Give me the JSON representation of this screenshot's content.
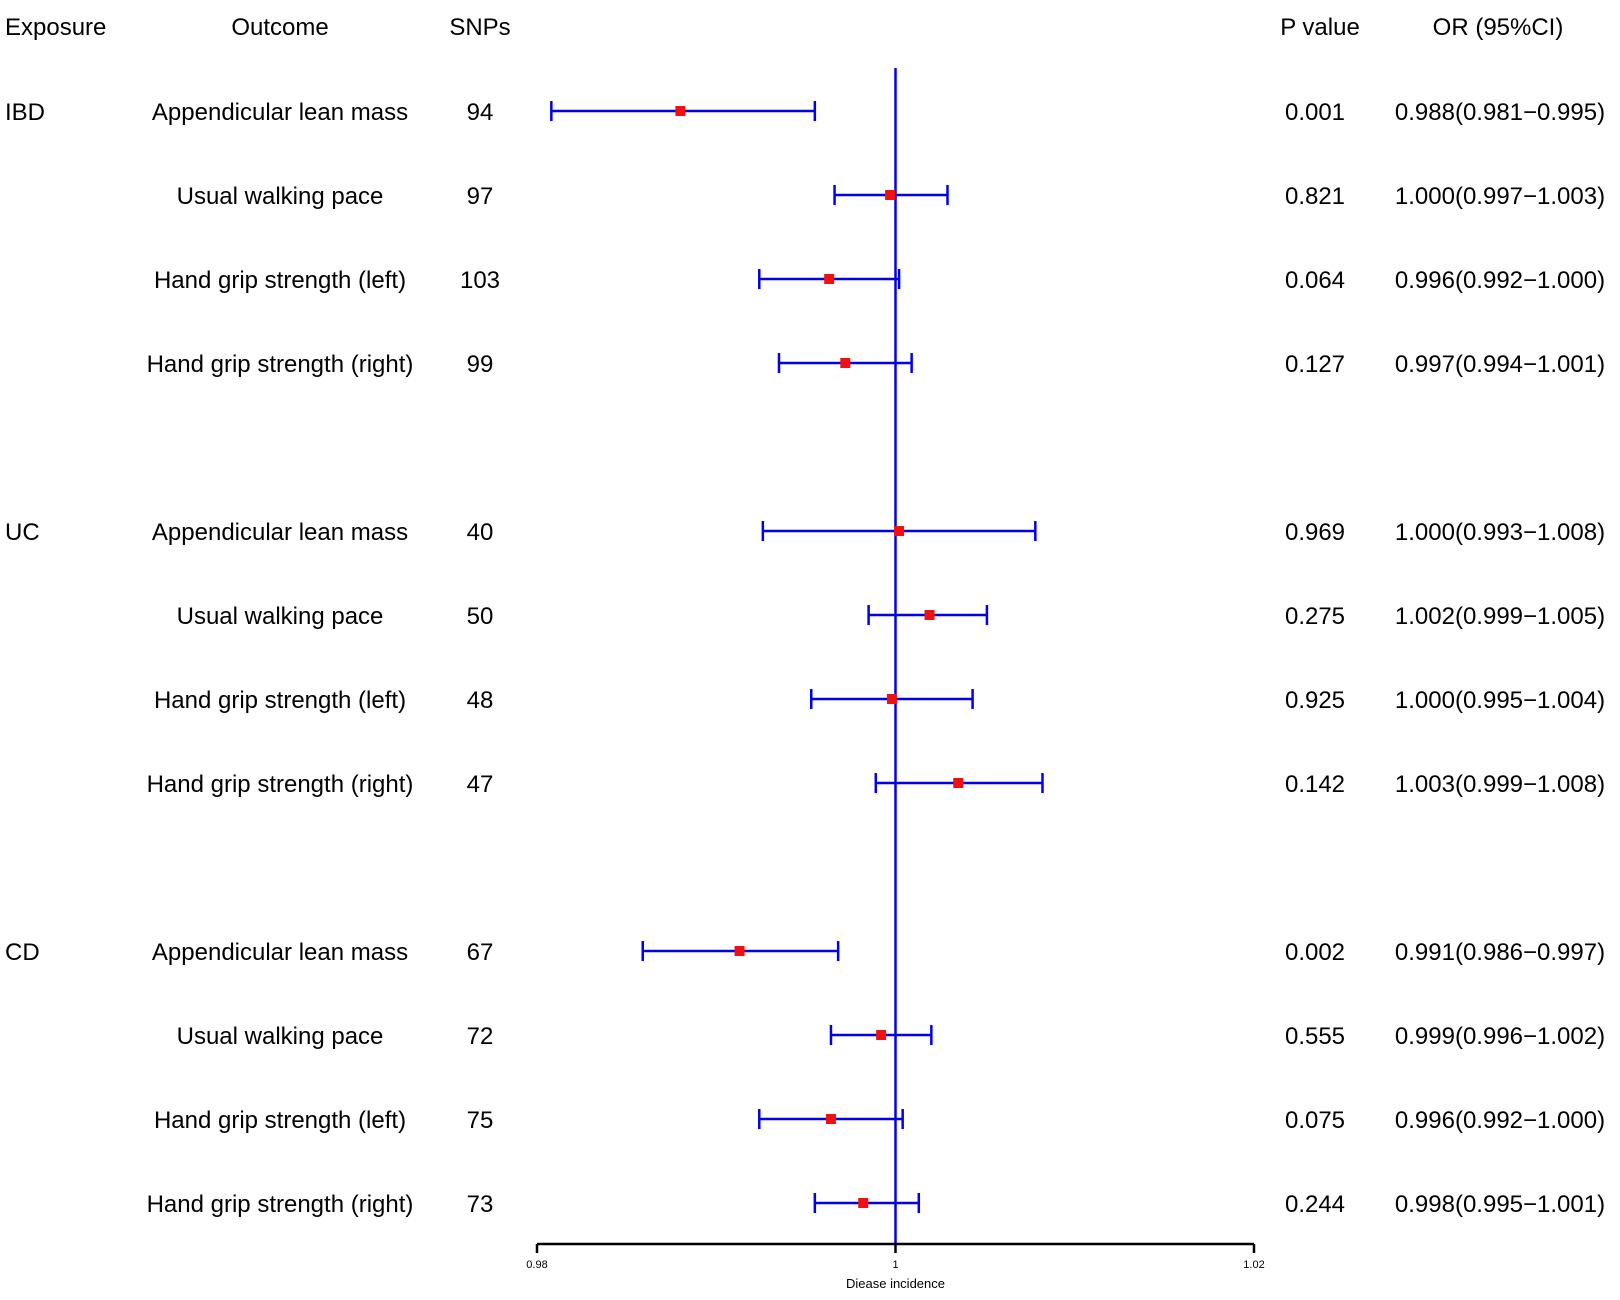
{
  "chart_data": {
    "type": "forest",
    "columns": {
      "exposure": "Exposure",
      "outcome": "Outcome",
      "snps": "SNPs",
      "pvalue": "P value",
      "or": "OR (95%CI)"
    },
    "xlabel": "Diease incidence",
    "xlim": [
      0.98,
      1.02
    ],
    "xticks": [
      {
        "value": 0.98,
        "label": "0.98"
      },
      {
        "value": 1.0,
        "label": "1"
      },
      {
        "value": 1.02,
        "label": "1.02"
      }
    ],
    "reference_line": 1.0,
    "colors": {
      "ci": "#0000ee",
      "point": "#ee1111",
      "axis": "#000000"
    },
    "groups": [
      {
        "exposure": "IBD",
        "rows": [
          {
            "outcome": "Appendicular lean mass",
            "snps": "94",
            "or": 0.988,
            "lower": 0.9808,
            "upper": 0.9955,
            "pvalue": "0.001",
            "or_text": "0.988(0.981−0.995)"
          },
          {
            "outcome": "Usual walking pace",
            "snps": "97",
            "or": 0.9997,
            "lower": 0.9966,
            "upper": 1.0029,
            "pvalue": "0.821",
            "or_text": "1.000(0.997−1.003)"
          },
          {
            "outcome": "Hand grip strength (left)",
            "snps": "103",
            "or": 0.9963,
            "lower": 0.9924,
            "upper": 1.0002,
            "pvalue": "0.064",
            "or_text": "0.996(0.992−1.000)"
          },
          {
            "outcome": "Hand grip strength (right)",
            "snps": "99",
            "or": 0.9972,
            "lower": 0.9935,
            "upper": 1.0009,
            "pvalue": "0.127",
            "or_text": "0.997(0.994−1.001)"
          }
        ]
      },
      {
        "exposure": "UC",
        "rows": [
          {
            "outcome": "Appendicular lean mass",
            "snps": "40",
            "or": 1.0002,
            "lower": 0.9926,
            "upper": 1.0078,
            "pvalue": "0.969",
            "or_text": "1.000(0.993−1.008)"
          },
          {
            "outcome": "Usual walking pace",
            "snps": "50",
            "or": 1.0019,
            "lower": 0.9985,
            "upper": 1.0051,
            "pvalue": "0.275",
            "or_text": "1.002(0.999−1.005)"
          },
          {
            "outcome": "Hand grip strength (left)",
            "snps": "48",
            "or": 0.9998,
            "lower": 0.9953,
            "upper": 1.0043,
            "pvalue": "0.925",
            "or_text": "1.000(0.995−1.004)"
          },
          {
            "outcome": "Hand grip strength (right)",
            "snps": "47",
            "or": 1.0035,
            "lower": 0.9989,
            "upper": 1.0082,
            "pvalue": "0.142",
            "or_text": "1.003(0.999−1.008)"
          }
        ]
      },
      {
        "exposure": "CD",
        "rows": [
          {
            "outcome": "Appendicular lean mass",
            "snps": "67",
            "or": 0.9913,
            "lower": 0.9859,
            "upper": 0.9968,
            "pvalue": "0.002",
            "or_text": "0.991(0.986−0.997)"
          },
          {
            "outcome": "Usual walking pace",
            "snps": "72",
            "or": 0.9992,
            "lower": 0.9964,
            "upper": 1.002,
            "pvalue": "0.555",
            "or_text": "0.999(0.996−1.002)"
          },
          {
            "outcome": "Hand grip strength (left)",
            "snps": "75",
            "or": 0.9964,
            "lower": 0.9924,
            "upper": 1.0004,
            "pvalue": "0.075",
            "or_text": "0.996(0.992−1.000)"
          },
          {
            "outcome": "Hand grip strength (right)",
            "snps": "73",
            "or": 0.9982,
            "lower": 0.9955,
            "upper": 1.0013,
            "pvalue": "0.244",
            "or_text": "0.998(0.995−1.001)"
          }
        ]
      }
    ]
  }
}
